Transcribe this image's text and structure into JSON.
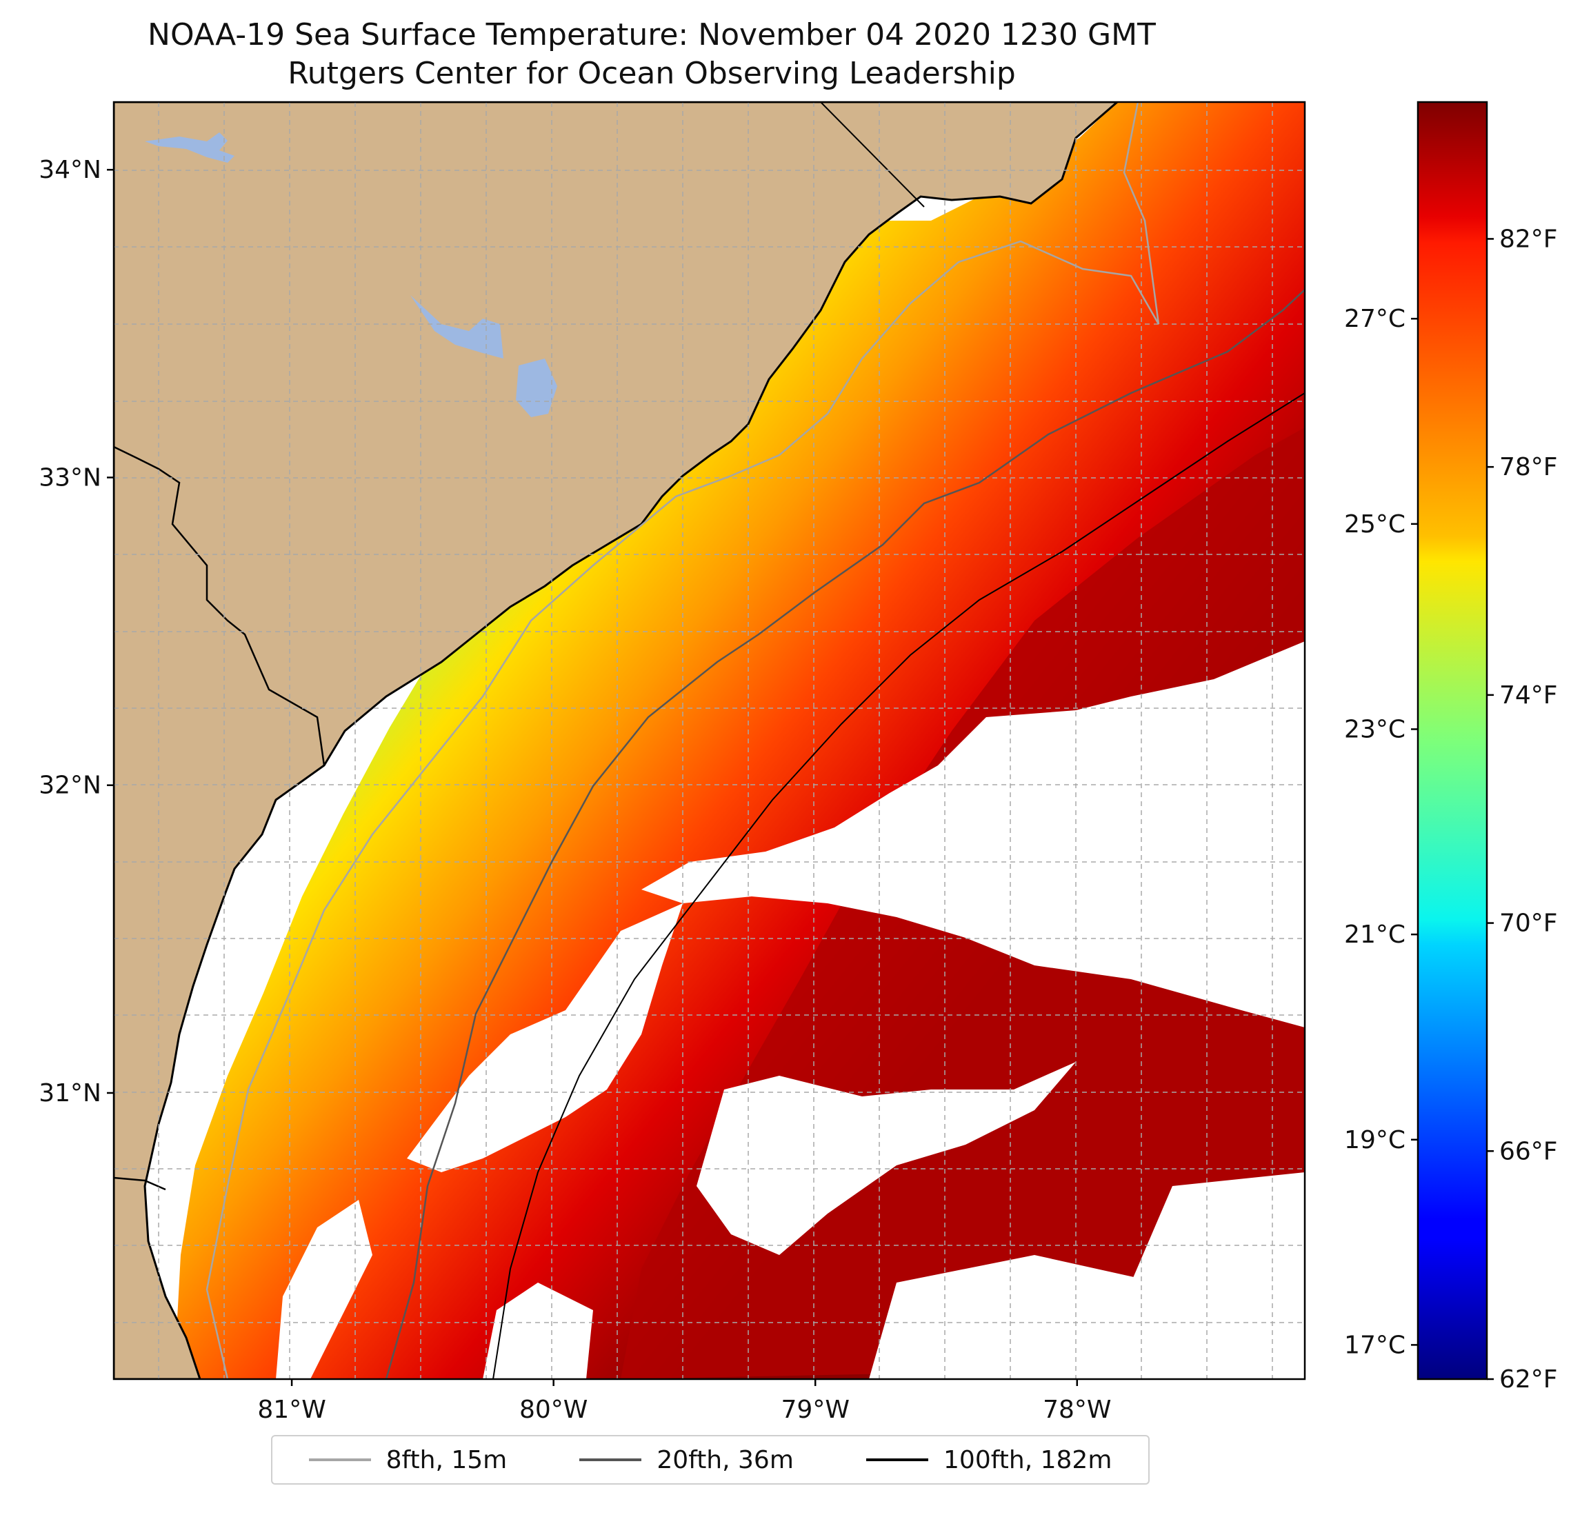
{
  "title": "NOAA-19 Sea Surface Temperature: November 04 2020 1230 GMT",
  "subtitle": "Rutgers Center for Ocean Observing Leadership",
  "map": {
    "lat_labels": [
      {
        "label": "34°N",
        "value": 34
      },
      {
        "label": "33°N",
        "value": 33
      },
      {
        "label": "32°N",
        "value": 32
      },
      {
        "label": "31°N",
        "value": 31
      }
    ],
    "lon_labels": [
      {
        "label": "81°W",
        "value": -81
      },
      {
        "label": "80°W",
        "value": -80
      },
      {
        "label": "79°W",
        "value": -79
      },
      {
        "label": "78°W",
        "value": -78
      }
    ],
    "extent": {
      "lon_min": -81.68,
      "lon_max": -77.13,
      "lat_min": 30.07,
      "lat_max": 34.22
    },
    "colors": {
      "land": "#d2b48c",
      "lakes": "#9db8e2",
      "no_data": "#ffffff",
      "grid": "#a8a8a8"
    }
  },
  "colorbar": {
    "fahrenheit_labels": [
      {
        "label": "82°F",
        "value": 82
      },
      {
        "label": "78°F",
        "value": 78
      },
      {
        "label": "74°F",
        "value": 74
      },
      {
        "label": "70°F",
        "value": 70
      },
      {
        "label": "66°F",
        "value": 66
      },
      {
        "label": "62°F",
        "value": 62
      }
    ],
    "celsius_labels": [
      {
        "label": "27°C",
        "value": 27
      },
      {
        "label": "25°C",
        "value": 25
      },
      {
        "label": "23°C",
        "value": 23
      },
      {
        "label": "21°C",
        "value": 21
      },
      {
        "label": "19°C",
        "value": 19
      },
      {
        "label": "17°C",
        "value": 17
      }
    ],
    "range_f": [
      62,
      84.4
    ],
    "colormap": "jet"
  },
  "legend": [
    {
      "label": "8fth, 15m",
      "color": "#a6a6a6"
    },
    {
      "label": "20fth, 36m",
      "color": "#555555"
    },
    {
      "label": "100fth, 182m",
      "color": "#000000"
    }
  ]
}
